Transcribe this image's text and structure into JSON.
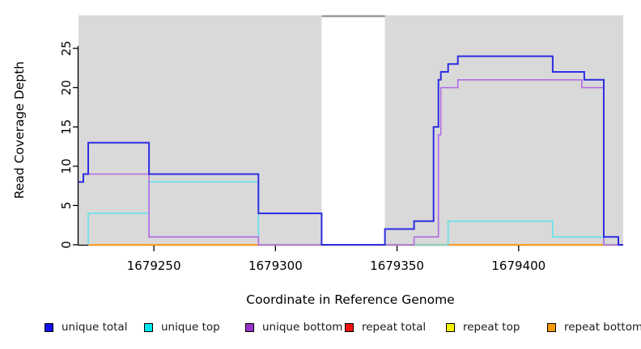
{
  "chart_data": {
    "type": "line",
    "subtype": "step",
    "title": "",
    "xlabel": "Coordinate in Reference Genome",
    "ylabel": "Read Coverage Depth",
    "xlim": [
      1679219,
      1679443
    ],
    "ylim": [
      0,
      29.2
    ],
    "xticks": [
      1679250,
      1679300,
      1679350,
      1679400
    ],
    "yticks": [
      0,
      5,
      10,
      15,
      20,
      25
    ],
    "grid": false,
    "legend_position": "bottom",
    "plot_background": "#ffffff",
    "shaded_regions": [
      {
        "name": "shaded-left",
        "x0": 1679219,
        "x1": 1679319,
        "color": "#d9d9d9"
      },
      {
        "name": "shaded-right",
        "x0": 1679345,
        "x1": 1679443,
        "color": "#d9d9d9"
      }
    ],
    "gap_top_line": {
      "x0": 1679319,
      "x1": 1679345,
      "color": "#9a9a9a"
    },
    "series": [
      {
        "name": "repeat total",
        "color": "#e32222",
        "width": 1.6,
        "points": [
          [
            1679223,
            0
          ],
          [
            1679443,
            0
          ]
        ]
      },
      {
        "name": "repeat top",
        "color": "#f0f000",
        "width": 1.6,
        "points": [
          [
            1679223,
            0
          ],
          [
            1679443,
            0
          ]
        ]
      },
      {
        "name": "repeat bottom",
        "color": "#ff9d1e",
        "width": 2,
        "points": [
          [
            1679223,
            0
          ],
          [
            1679443,
            0
          ]
        ]
      },
      {
        "name": "unique top",
        "color": "#63e3ec",
        "width": 1.6,
        "points": [
          [
            1679223,
            0
          ],
          [
            1679223,
            4
          ],
          [
            1679248,
            8
          ],
          [
            1679293,
            0
          ],
          [
            1679371,
            3
          ],
          [
            1679414,
            1
          ],
          [
            1679435,
            0
          ],
          [
            1679443,
            0
          ]
        ]
      },
      {
        "name": "unique bottom",
        "color": "#b169e3",
        "width": 1.6,
        "points": [
          [
            1679219,
            8
          ],
          [
            1679221,
            9
          ],
          [
            1679248,
            1
          ],
          [
            1679293,
            0
          ],
          [
            1679357,
            1
          ],
          [
            1679367,
            14
          ],
          [
            1679368,
            20
          ],
          [
            1679375,
            21
          ],
          [
            1679426,
            20
          ],
          [
            1679435,
            0
          ],
          [
            1679443,
            0
          ]
        ]
      },
      {
        "name": "unique total",
        "color": "#2d2de2",
        "width": 2,
        "points": [
          [
            1679219,
            8
          ],
          [
            1679221,
            9
          ],
          [
            1679223,
            13
          ],
          [
            1679248,
            9
          ],
          [
            1679293,
            4
          ],
          [
            1679319,
            0
          ],
          [
            1679345,
            2
          ],
          [
            1679357,
            3
          ],
          [
            1679365,
            15
          ],
          [
            1679367,
            21
          ],
          [
            1679368,
            22
          ],
          [
            1679371,
            23
          ],
          [
            1679375,
            24
          ],
          [
            1679414,
            22
          ],
          [
            1679427,
            21
          ],
          [
            1679435,
            1
          ],
          [
            1679441,
            0
          ],
          [
            1679443,
            0
          ]
        ]
      }
    ],
    "legend": [
      {
        "label": "unique total",
        "color": "#1111ee"
      },
      {
        "label": "unique top",
        "color": "#00e5ee"
      },
      {
        "label": "unique bottom",
        "color": "#9933cc"
      },
      {
        "label": "repeat total",
        "color": "#ee1111"
      },
      {
        "label": "repeat top",
        "color": "#f3f500"
      },
      {
        "label": "repeat bottom",
        "color": "#f59b00"
      }
    ],
    "axis_color": "#000000"
  }
}
